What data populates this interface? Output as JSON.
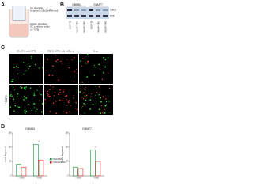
{
  "panels": {
    "a": "A",
    "b": "B",
    "c": "C",
    "d": "D"
  },
  "panel_a": {
    "top_label": "top chamber",
    "top_text": "NS (green) + Cdh11 shRNA (red)",
    "bottom_label": "bottom chamber",
    "bottom_text": "LTC conditioned media",
    "condition": "(+/- TGFβ)"
  },
  "panel_b": {
    "groups": [
      "GBM83",
      "GBM77"
    ],
    "lanes": [
      "NS shRNA",
      "Cdh11 shRNA1",
      "Cdh11 shRNA2"
    ],
    "bands": [
      "Cdh11",
      "actin"
    ]
  },
  "panel_c": {
    "columns": [
      "NSshRNA cells (GFP)",
      "CDH11 shRNA cells (mCherry)",
      "Merge"
    ],
    "row_label": "+TGFβ"
  },
  "panel_d": {
    "charts": [
      {
        "type": "bar",
        "title": "GBM83",
        "y_label": "Cells Migrated",
        "categories": [
          "-TGFβ",
          "+TGFβ"
        ],
        "ylim": [
          0,
          150
        ],
        "yticks": [
          0,
          50,
          100,
          150
        ],
        "annotation": "*",
        "series": [
          {
            "name": "NSshRNA",
            "color": "#1a9a3a",
            "values": [
              40,
              110
            ]
          },
          {
            "name": "Cdh11 shRNA",
            "color": "#d62020",
            "values": [
              30,
              55
            ]
          }
        ]
      },
      {
        "type": "bar",
        "title": "GBM77",
        "y_label": "Cells Migrated",
        "categories": [
          "-TGFβ",
          "+TGFβ"
        ],
        "ylim": [
          0,
          150
        ],
        "yticks": [
          0,
          50,
          100,
          150
        ],
        "annotation": "*",
        "series": [
          {
            "name": "NSshRNA",
            "color": "#1a9a3a",
            "values": [
              30,
              90
            ]
          },
          {
            "name": "Cdh11 shRNA",
            "color": "#d62020",
            "values": [
              25,
              50
            ]
          }
        ]
      }
    ]
  }
}
